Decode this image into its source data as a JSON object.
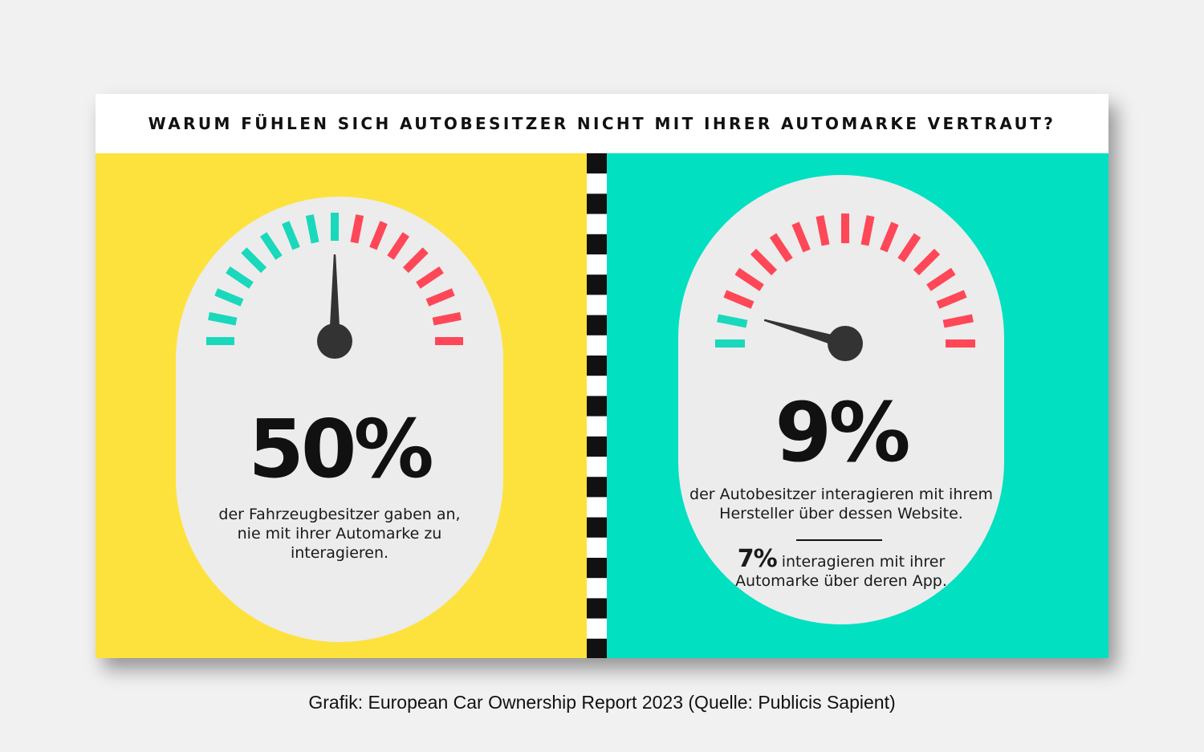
{
  "title": "WARUM FÜHLEN SICH AUTOBESITZER NICHT MIT IHRER AUTOMARKE VERTRAUT?",
  "colors": {
    "left_bg": "#fde23e",
    "right_bg": "#02e0c2",
    "pill": "#ececec",
    "gauge_low": "#19d8bb",
    "gauge_high": "#fe4757",
    "needle": "#333333",
    "checker_dark": "#111111",
    "checker_light": "#ffffff"
  },
  "chart_data": [
    {
      "type": "gauge",
      "value": 50,
      "range": [
        0,
        100
      ],
      "value_label": "50%",
      "description": [
        "der Fahrzeugbesitzer gaben an,",
        "nie mit ihrer Automarke zu",
        "interagieren."
      ]
    },
    {
      "type": "gauge",
      "value": 9,
      "range": [
        0,
        100
      ],
      "value_label": "9%",
      "description": [
        "der Autobesitzer interagieren mit ihrem",
        "Hersteller über dessen Website."
      ],
      "secondary": {
        "value_label": "7%",
        "text_line1": "interagieren mit ihrer",
        "text_line2": "Automarke über deren App."
      }
    }
  ],
  "caption": "Grafik: European Car Ownership Report 2023 (Quelle: Publicis Sapient)"
}
